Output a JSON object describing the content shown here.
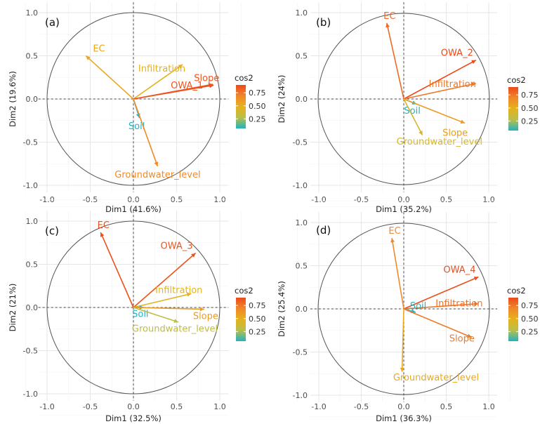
{
  "legend": {
    "title": "cos2",
    "ticks": [
      "0.75",
      "0.50",
      "0.25"
    ],
    "colors": [
      "#21b3c2",
      "#b8bf4a",
      "#e6b21c",
      "#f0882a",
      "#ec4a1a"
    ]
  },
  "chart_data": [
    {
      "type": "scatter",
      "panel_label": "(a)",
      "xlabel": "Dim1 (41.6%)",
      "ylabel": "Dim2 (19.6%)",
      "xlim": [
        -1.0,
        1.0
      ],
      "ylim": [
        -1.0,
        1.0
      ],
      "xticks": [
        "-1.0",
        "-0.5",
        "0.0",
        "0.5",
        "1.0"
      ],
      "yticks": [
        "1.0",
        "0.5",
        "0.0",
        "-0.5",
        "-1.0"
      ],
      "grid": true,
      "legend_position": "right",
      "vectors": [
        {
          "name": "EC",
          "x": -0.55,
          "y": 0.5,
          "cos2": 0.54
        },
        {
          "name": "Infiltration",
          "x": 0.57,
          "y": 0.4,
          "cos2": 0.48
        },
        {
          "name": "Slope",
          "x": 0.93,
          "y": 0.16,
          "cos2": 0.89
        },
        {
          "name": "OWA_1",
          "x": 0.92,
          "y": 0.17,
          "cos2": 0.88
        },
        {
          "name": "Soil",
          "x": 0.07,
          "y": -0.22,
          "cos2": 0.05
        },
        {
          "name": "Groundwater_level",
          "x": 0.28,
          "y": -0.78,
          "cos2": 0.69
        }
      ]
    },
    {
      "type": "scatter",
      "panel_label": "(b)",
      "xlabel": "Dim1 (35.2%)",
      "ylabel": "Dim2 (24%)",
      "xlim": [
        -1.0,
        1.0
      ],
      "ylim": [
        -1.0,
        1.0
      ],
      "xticks": [
        "-1.0",
        "-0.5",
        "0.0",
        "0.5",
        "1.0"
      ],
      "yticks": [
        "1.0",
        "0.5",
        "0.0",
        "-0.5",
        "-1.0"
      ],
      "grid": true,
      "legend_position": "right",
      "vectors": [
        {
          "name": "EC",
          "x": -0.2,
          "y": 0.88,
          "cos2": 0.81
        },
        {
          "name": "OWA_2",
          "x": 0.85,
          "y": 0.45,
          "cos2": 0.92
        },
        {
          "name": "Infiltration",
          "x": 0.85,
          "y": 0.18,
          "cos2": 0.76
        },
        {
          "name": "Soil",
          "x": 0.15,
          "y": -0.06,
          "cos2": 0.03
        },
        {
          "name": "Slope",
          "x": 0.72,
          "y": -0.28,
          "cos2": 0.6
        },
        {
          "name": "Groundwater_level",
          "x": 0.22,
          "y": -0.42,
          "cos2": 0.4
        }
      ]
    },
    {
      "type": "scatter",
      "panel_label": "(c)",
      "xlabel": "Dim1 (32.5%)",
      "ylabel": "Dim2 (21%)",
      "xlim": [
        -1.0,
        1.0
      ],
      "ylim": [
        -1.0,
        1.0
      ],
      "xticks": [
        "-1.0",
        "-0.5",
        "0.0",
        "0.5",
        "1.0"
      ],
      "yticks": [
        "1.0",
        "0.5",
        "0.0",
        "-0.5",
        "-1.0"
      ],
      "grid": true,
      "legend_position": "right",
      "vectors": [
        {
          "name": "EC",
          "x": -0.38,
          "y": 0.87,
          "cos2": 0.9
        },
        {
          "name": "OWA_3",
          "x": 0.72,
          "y": 0.63,
          "cos2": 0.88
        },
        {
          "name": "Infiltration",
          "x": 0.67,
          "y": 0.16,
          "cos2": 0.47
        },
        {
          "name": "Soil",
          "x": 0.12,
          "y": 0.0,
          "cos2": 0.02
        },
        {
          "name": "Slope",
          "x": 0.82,
          "y": -0.02,
          "cos2": 0.6
        },
        {
          "name": "Groundwater_level",
          "x": 0.52,
          "y": -0.17,
          "cos2": 0.3
        }
      ]
    },
    {
      "type": "scatter",
      "panel_label": "(d)",
      "xlabel": "Dim1 (36.3%)",
      "ylabel": "Dim2 (25.4%)",
      "xlim": [
        -1.0,
        1.0
      ],
      "ylim": [
        -1.0,
        1.0
      ],
      "xticks": [
        "-1.0",
        "-0.5",
        "0.0",
        "0.5",
        "1.0"
      ],
      "yticks": [
        "1.0",
        "0.5",
        "0.0",
        "-0.5",
        "-1.0"
      ],
      "grid": true,
      "legend_position": "right",
      "vectors": [
        {
          "name": "EC",
          "x": -0.14,
          "y": 0.82,
          "cos2": 0.69
        },
        {
          "name": "OWA_4",
          "x": 0.88,
          "y": 0.37,
          "cos2": 0.91
        },
        {
          "name": "Infiltration",
          "x": 0.88,
          "y": 0.06,
          "cos2": 0.78
        },
        {
          "name": "Soil",
          "x": 0.14,
          "y": -0.04,
          "cos2": 0.03
        },
        {
          "name": "Slope",
          "x": 0.8,
          "y": -0.33,
          "cos2": 0.75
        },
        {
          "name": "Groundwater_level",
          "x": -0.02,
          "y": -0.73,
          "cos2": 0.53
        }
      ]
    }
  ]
}
